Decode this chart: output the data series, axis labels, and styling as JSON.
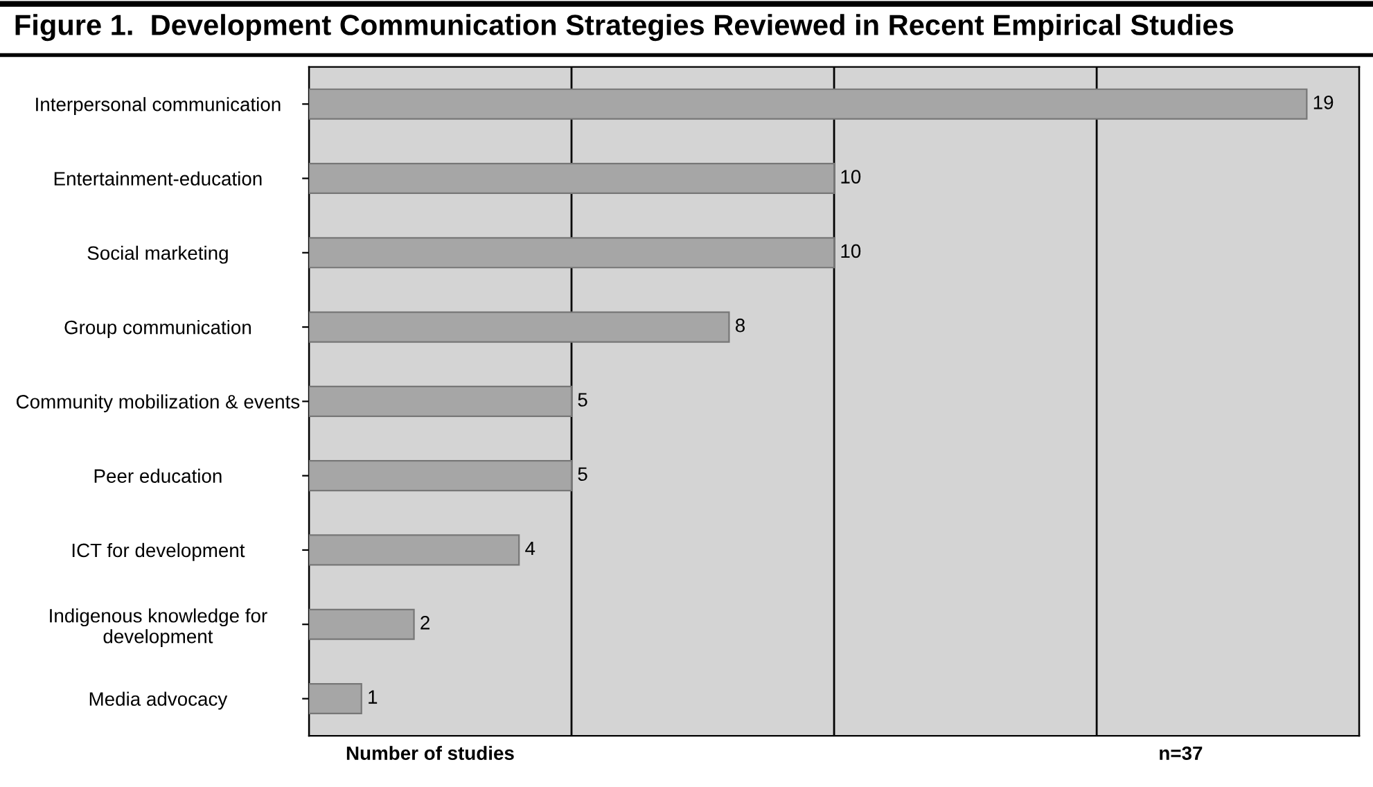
{
  "chart_data": {
    "type": "bar",
    "orientation": "horizontal",
    "title": "Figure 1.  Development Communication Strategies Reviewed in Recent Empirical Studies",
    "xlabel": "Number of studies",
    "annotations": [
      "n=37"
    ],
    "categories": [
      "Interpersonal communication",
      "Entertainment-education",
      "Social marketing",
      "Group communication",
      "Community mobilization & events",
      "Peer education",
      "ICT for development",
      "Indigenous knowledge for development",
      "Media advocacy"
    ],
    "values": [
      19,
      10,
      10,
      8,
      5,
      5,
      4,
      2,
      1
    ],
    "color": "#a6a6a6",
    "data_labels": true,
    "xlim": [
      0,
      20
    ],
    "xticks": [
      {
        "value": 0,
        "label": null
      },
      {
        "value": 5,
        "label": null
      },
      {
        "value": 10,
        "label": null
      },
      {
        "value": 15,
        "label": null
      },
      {
        "value": 20,
        "label": null
      }
    ],
    "grid": "x",
    "tick_labels": "y"
  }
}
